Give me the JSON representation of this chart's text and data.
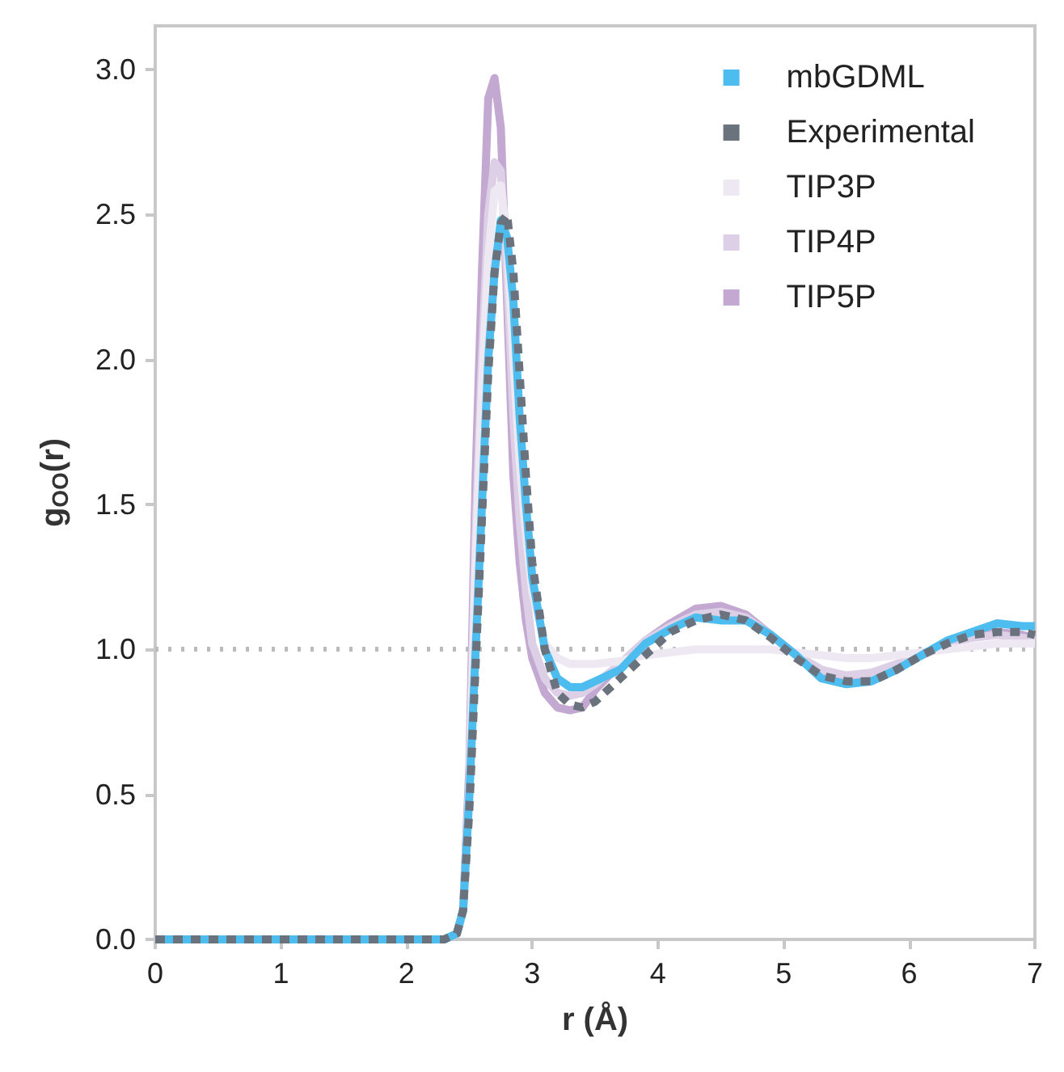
{
  "chart_data": {
    "type": "line",
    "xlabel": "r (Å)",
    "ylabel": "g$_{OO}$(r)",
    "x": [
      0,
      2.3,
      2.4,
      2.45,
      2.5,
      2.55,
      2.6,
      2.65,
      2.7,
      2.75,
      2.8,
      2.85,
      2.9,
      2.95,
      3.0,
      3.1,
      3.2,
      3.3,
      3.4,
      3.5,
      3.7,
      3.9,
      4.1,
      4.3,
      4.5,
      4.7,
      4.9,
      5.1,
      5.3,
      5.5,
      5.7,
      5.9,
      6.1,
      6.3,
      6.5,
      6.7,
      6.9,
      7.0
    ],
    "series": [
      {
        "name": "mbGDML",
        "color": "#4dbdef",
        "line_style": "solid",
        "values": [
          0,
          0,
          0.02,
          0.1,
          0.5,
          1.0,
          1.5,
          2.0,
          2.3,
          2.48,
          2.42,
          2.2,
          1.8,
          1.5,
          1.25,
          1.0,
          0.9,
          0.87,
          0.87,
          0.89,
          0.93,
          1.02,
          1.07,
          1.11,
          1.1,
          1.1,
          1.05,
          0.98,
          0.9,
          0.88,
          0.89,
          0.93,
          0.98,
          1.03,
          1.06,
          1.09,
          1.08,
          1.08
        ]
      },
      {
        "name": "Experimental",
        "color": "#6a737d",
        "line_style": "dashed",
        "values": [
          0,
          0,
          0.02,
          0.1,
          0.45,
          0.95,
          1.45,
          1.95,
          2.3,
          2.47,
          2.5,
          2.3,
          1.95,
          1.6,
          1.3,
          1.0,
          0.85,
          0.81,
          0.8,
          0.82,
          0.9,
          0.98,
          1.06,
          1.1,
          1.12,
          1.1,
          1.04,
          0.97,
          0.91,
          0.89,
          0.89,
          0.93,
          0.98,
          1.02,
          1.05,
          1.06,
          1.06,
          1.05
        ]
      },
      {
        "name": "TIP3P",
        "color": "#eee8f3",
        "line_style": "solid",
        "values": [
          0,
          0,
          0.02,
          0.1,
          0.5,
          1.3,
          1.9,
          2.35,
          2.58,
          2.6,
          2.4,
          2.0,
          1.65,
          1.4,
          1.2,
          1.02,
          0.97,
          0.95,
          0.95,
          0.95,
          0.96,
          0.98,
          0.99,
          1.0,
          1.0,
          1.0,
          1.0,
          0.99,
          0.98,
          0.97,
          0.97,
          0.98,
          0.99,
          1.0,
          1.01,
          1.02,
          1.02,
          1.02
        ]
      },
      {
        "name": "TIP4P",
        "color": "#ddd0e6",
        "line_style": "solid",
        "values": [
          0,
          0,
          0.02,
          0.1,
          0.55,
          1.4,
          2.0,
          2.5,
          2.68,
          2.65,
          2.3,
          1.8,
          1.45,
          1.2,
          1.02,
          0.9,
          0.85,
          0.84,
          0.85,
          0.88,
          0.95,
          1.03,
          1.08,
          1.12,
          1.13,
          1.11,
          1.05,
          0.98,
          0.93,
          0.91,
          0.92,
          0.95,
          0.98,
          1.02,
          1.04,
          1.05,
          1.04,
          1.03
        ]
      },
      {
        "name": "TIP5P",
        "color": "#c3a9d1",
        "line_style": "solid",
        "values": [
          0,
          0,
          0.02,
          0.1,
          0.6,
          1.6,
          2.3,
          2.9,
          2.97,
          2.8,
          2.2,
          1.6,
          1.3,
          1.1,
          0.97,
          0.85,
          0.8,
          0.79,
          0.8,
          0.86,
          0.95,
          1.03,
          1.09,
          1.14,
          1.15,
          1.12,
          1.05,
          0.98,
          0.93,
          0.9,
          0.91,
          0.94,
          0.98,
          1.02,
          1.05,
          1.06,
          1.05,
          1.04
        ]
      }
    ],
    "xlim": [
      0,
      7
    ],
    "xticks": [
      0,
      1,
      2,
      3,
      4,
      5,
      6,
      7
    ],
    "ylim": [
      0,
      3.15
    ],
    "yticks": [
      {
        "value": 0,
        "label": "0.0"
      },
      {
        "value": 0.5,
        "label": "0.5"
      },
      {
        "value": 1,
        "label": "1.0"
      },
      {
        "value": 1.5,
        "label": "1.5"
      },
      {
        "value": 2,
        "label": "2.0"
      },
      {
        "value": 2.5,
        "label": "2.5"
      },
      {
        "value": 3,
        "label": "3.0"
      }
    ],
    "ref_lines": [
      {
        "axis": "y",
        "value": 1,
        "color": "#bbbbbb",
        "line_style": "dotted"
      }
    ],
    "grid": false,
    "legend": "top right",
    "marker": "none"
  }
}
